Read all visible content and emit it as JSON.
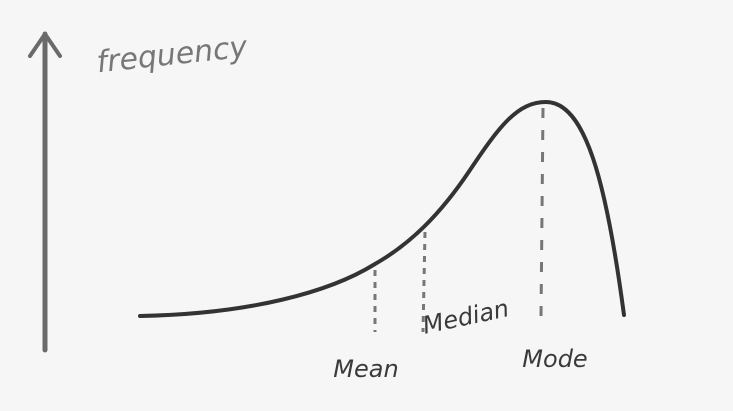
{
  "axis_label": "frequency",
  "markers": [
    {
      "label": "Mean"
    },
    {
      "label": "Median"
    },
    {
      "label": "Mode"
    }
  ]
}
